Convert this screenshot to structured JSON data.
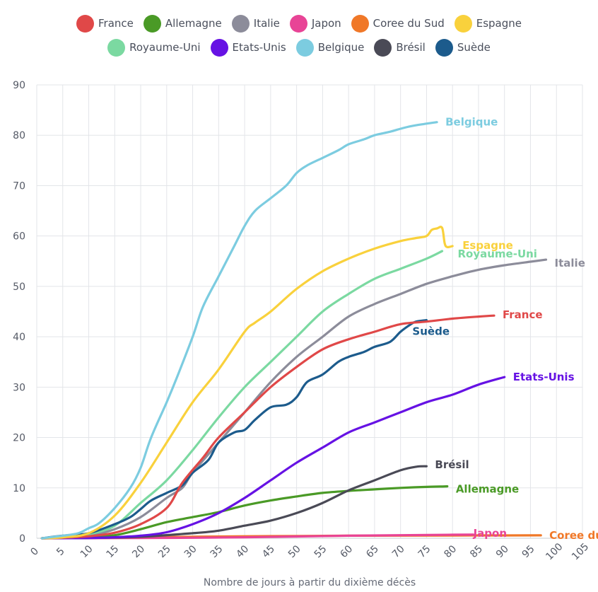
{
  "chart_data": {
    "type": "line",
    "xlabel": "Nombre de jours à partir du dixième décès",
    "ylabel": "",
    "xlim": [
      0,
      105
    ],
    "ylim": [
      0,
      90
    ],
    "xticks": [
      0,
      5,
      10,
      15,
      20,
      25,
      30,
      35,
      40,
      45,
      50,
      55,
      60,
      65,
      70,
      75,
      80,
      85,
      90,
      95,
      100,
      105
    ],
    "yticks": [
      0,
      10,
      20,
      30,
      40,
      50,
      60,
      70,
      80,
      90
    ],
    "grid": true,
    "legend_position": "top",
    "series": [
      {
        "name": "France",
        "color": "#e04848",
        "x": [
          1,
          5,
          10,
          15,
          20,
          25,
          28,
          32,
          35,
          40,
          45,
          50,
          55,
          60,
          65,
          70,
          75,
          80,
          85,
          88
        ],
        "y": [
          0,
          0.1,
          0.4,
          1.1,
          2.8,
          6,
          11,
          16,
          20,
          25,
          30,
          34,
          37.5,
          39.5,
          41,
          42.5,
          43,
          43.6,
          44,
          44.2
        ]
      },
      {
        "name": "Allemagne",
        "color": "#4a9a26",
        "x": [
          1,
          5,
          10,
          15,
          20,
          25,
          30,
          35,
          40,
          45,
          50,
          55,
          60,
          65,
          70,
          75,
          79
        ],
        "y": [
          0,
          0.05,
          0.2,
          0.6,
          1.8,
          3.2,
          4.2,
          5.2,
          6.5,
          7.5,
          8.3,
          9,
          9.4,
          9.7,
          10,
          10.2,
          10.3
        ]
      },
      {
        "name": "Italie",
        "color": "#8c8c9a",
        "x": [
          1,
          5,
          10,
          15,
          20,
          25,
          28,
          30,
          35,
          40,
          45,
          50,
          55,
          60,
          65,
          70,
          75,
          80,
          85,
          90,
          95,
          98
        ],
        "y": [
          0,
          0.1,
          0.5,
          1.8,
          4.2,
          8,
          10,
          13,
          19,
          25,
          31,
          36,
          40,
          44,
          46.5,
          48.5,
          50.5,
          52,
          53.3,
          54.2,
          54.9,
          55.3
        ]
      },
      {
        "name": "Japon",
        "color": "#e84496",
        "x": [
          1,
          10,
          20,
          30,
          40,
          50,
          60,
          70,
          80,
          84
        ],
        "y": [
          0,
          0.02,
          0.05,
          0.1,
          0.2,
          0.35,
          0.5,
          0.6,
          0.7,
          0.72
        ]
      },
      {
        "name": "Coree du Sud",
        "color": "#f07828",
        "x": [
          1,
          10,
          20,
          30,
          40,
          50,
          60,
          70,
          80,
          90,
          97
        ],
        "y": [
          0,
          0.1,
          0.2,
          0.3,
          0.4,
          0.45,
          0.5,
          0.52,
          0.55,
          0.56,
          0.57
        ]
      },
      {
        "name": "Espagne",
        "color": "#f9d13c",
        "x": [
          1,
          5,
          10,
          15,
          20,
          25,
          30,
          35,
          40,
          42,
          45,
          50,
          55,
          60,
          65,
          70,
          73,
          75,
          76,
          77,
          78,
          78.5,
          79,
          80
        ],
        "y": [
          0,
          0.2,
          1,
          4.5,
          11,
          19,
          27,
          33.5,
          41,
          42.8,
          45,
          49.5,
          53,
          55.5,
          57.5,
          59,
          59.6,
          60,
          61.2,
          61.5,
          61.6,
          58.5,
          57.8,
          58
        ]
      },
      {
        "name": "Royaume-Uni",
        "color": "#7bd9a1",
        "x": [
          1,
          5,
          10,
          15,
          20,
          25,
          30,
          35,
          40,
          45,
          50,
          55,
          60,
          65,
          70,
          75,
          78
        ],
        "y": [
          0,
          0.2,
          0.8,
          2.5,
          7,
          11.5,
          17.5,
          24,
          30,
          35,
          40,
          45,
          48.5,
          51.5,
          53.5,
          55.5,
          57
        ]
      },
      {
        "name": "Etats-Unis",
        "color": "#6612e4",
        "x": [
          1,
          10,
          15,
          20,
          25,
          30,
          35,
          40,
          45,
          50,
          55,
          60,
          65,
          70,
          75,
          80,
          85,
          90
        ],
        "y": [
          0,
          0.05,
          0.2,
          0.5,
          1.2,
          2.8,
          5,
          8,
          11.5,
          15,
          18,
          21,
          23,
          25,
          27,
          28.5,
          30.5,
          32
        ]
      },
      {
        "name": "Belgique",
        "color": "#7ccce0",
        "x": [
          1,
          5,
          8,
          10,
          12,
          15,
          18,
          20,
          22,
          25,
          27,
          30,
          32,
          35,
          38,
          40,
          42,
          45,
          48,
          50,
          52,
          55,
          58,
          60,
          63,
          65,
          68,
          70,
          72,
          75,
          77
        ],
        "y": [
          0,
          0.5,
          1,
          2,
          3,
          6,
          10,
          14,
          20,
          27,
          32,
          40,
          46,
          52,
          58,
          62,
          65,
          67.5,
          70,
          72.5,
          74,
          75.5,
          77,
          78.2,
          79.2,
          80,
          80.7,
          81.3,
          81.8,
          82.3,
          82.6
        ]
      },
      {
        "name": "Brésil",
        "color": "#4a4a56",
        "x": [
          1,
          10,
          20,
          30,
          35,
          40,
          45,
          50,
          55,
          60,
          65,
          70,
          73,
          75
        ],
        "y": [
          0,
          0.05,
          0.3,
          1,
          1.5,
          2.5,
          3.5,
          5,
          7,
          9.5,
          11.5,
          13.5,
          14.2,
          14.3
        ]
      },
      {
        "name": "Suède",
        "color": "#1c5b8c",
        "x": [
          1,
          5,
          10,
          15,
          18,
          20,
          22,
          25,
          28,
          30,
          33,
          35,
          38,
          40,
          42,
          45,
          48,
          50,
          52,
          55,
          58,
          60,
          63,
          65,
          68,
          70,
          72,
          73,
          75
        ],
        "y": [
          0,
          0.5,
          1,
          2.8,
          4.2,
          5.8,
          7.5,
          9,
          10.5,
          13,
          15.5,
          19,
          21,
          21.5,
          23.5,
          26,
          26.5,
          28,
          31,
          32.5,
          35,
          36,
          37,
          38,
          39,
          41,
          42.5,
          43,
          43.3
        ]
      }
    ],
    "end_labels": [
      {
        "text": "Belgique",
        "series": "Belgique"
      },
      {
        "text": "Royaume-Uni",
        "series": "Royaume-Uni"
      },
      {
        "text": "Espagne",
        "series": "Espagne"
      },
      {
        "text": "Italie",
        "series": "Italie"
      },
      {
        "text": "France",
        "series": "France"
      },
      {
        "text": "Suède",
        "series": "Suède"
      },
      {
        "text": "Etats-Unis",
        "series": "Etats-Unis"
      },
      {
        "text": "Brésil",
        "series": "Brésil"
      },
      {
        "text": "Allemagne",
        "series": "Allemagne"
      },
      {
        "text": "Japon",
        "series": "Japon"
      },
      {
        "text": "Coree du Sud",
        "series": "Coree du Sud"
      }
    ]
  }
}
